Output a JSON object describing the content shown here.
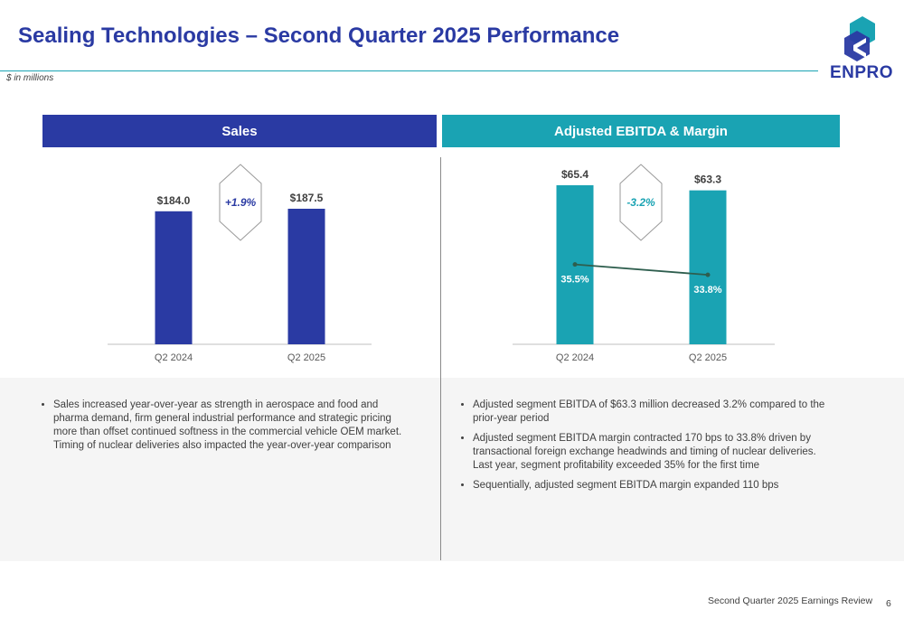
{
  "header": {
    "title": "Sealing Technologies – Second Quarter 2025 Performance",
    "units": "$ in millions",
    "logo_text": "ENPRO"
  },
  "colors": {
    "navy": "#2a3aa3",
    "teal": "#1aa3b3",
    "line": "#2e5e4e"
  },
  "sales": {
    "heading": "Sales",
    "change_label": "+1.9%",
    "bullets": [
      "Sales increased year-over-year as strength in aerospace and food and pharma demand, firm general industrial performance and strategic pricing more than offset continued softness in the commercial vehicle OEM market.  Timing of nuclear deliveries also impacted the year-over-year comparison"
    ]
  },
  "ebitda": {
    "heading": "Adjusted EBITDA & Margin",
    "change_label": "-3.2%",
    "bullets": [
      "Adjusted segment EBITDA of $63.3 million decreased 3.2% compared to the prior-year period",
      "Adjusted segment EBITDA margin contracted 170 bps to 33.8% driven by transactional foreign exchange headwinds and timing of nuclear deliveries.  Last year, segment profitability exceeded 35% for the first time",
      "Sequentially, adjusted segment EBITDA margin expanded 110 bps"
    ]
  },
  "chart_data": [
    {
      "type": "bar",
      "categories": [
        "Q2 2024",
        "Q2 2025"
      ],
      "values": [
        184.0,
        187.5
      ],
      "value_labels": [
        "$184.0",
        "$187.5"
      ],
      "color": "#2a3aa3"
    },
    {
      "type": "bar",
      "categories": [
        "Q2 2024",
        "Q2 2025"
      ],
      "values": [
        65.4,
        63.3
      ],
      "value_labels": [
        "$65.4",
        "$63.3"
      ],
      "color": "#1aa3b3",
      "line_series": {
        "values": [
          35.5,
          33.8
        ],
        "labels": [
          "35.5%",
          "33.8%"
        ]
      }
    }
  ],
  "footer": {
    "text": "Second Quarter 2025 Earnings Review",
    "page": "6"
  }
}
